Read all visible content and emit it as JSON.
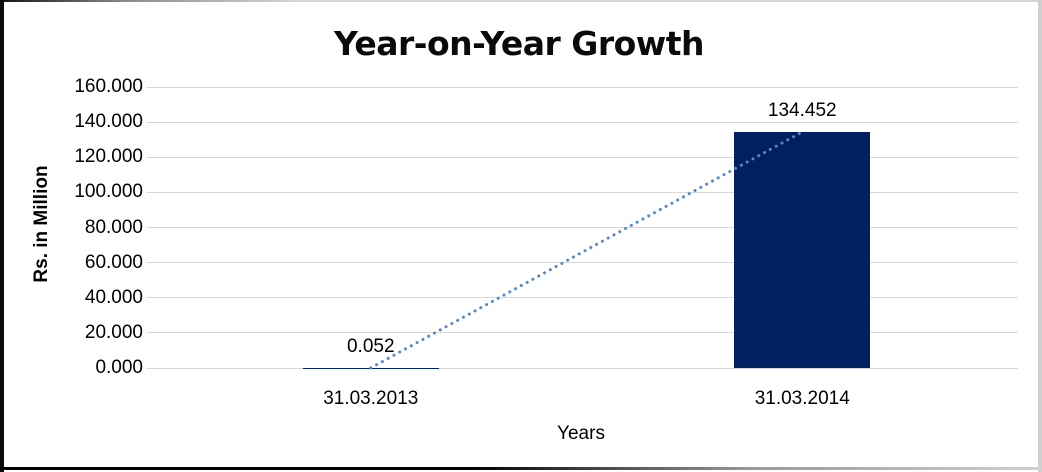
{
  "chart_data": {
    "type": "bar",
    "title": "Year-on-Year Growth",
    "categories": [
      "31.03.2013",
      "31.03.2014"
    ],
    "values": [
      0.052,
      134.452
    ],
    "data_labels": [
      "0.052",
      "134.452"
    ],
    "xlabel": "Years",
    "ylabel": "Rs. in Million",
    "ylim": [
      0,
      160
    ],
    "ytick_step": 20,
    "ytick_labels": [
      "0.000",
      "20.000",
      "40.000",
      "60.000",
      "80.000",
      "100.000",
      "120.000",
      "140.000",
      "160.000"
    ],
    "grid": true,
    "legend": false,
    "colors": {
      "bar": "#002060",
      "trendline": "#5488c7",
      "gridline": "#d8d8d8",
      "text": "#000000"
    },
    "trendline": {
      "style": "dotted",
      "from": [
        0,
        0.052
      ],
      "to": [
        1,
        134.452
      ]
    }
  }
}
